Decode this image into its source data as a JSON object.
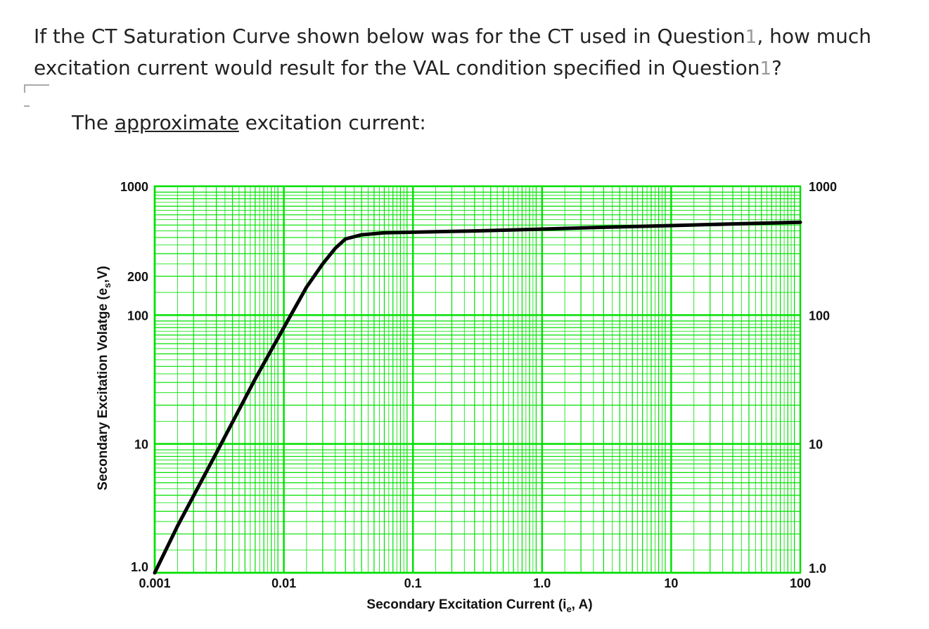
{
  "question": {
    "line1_before": "If the CT Saturation Curve shown below was for the CT used in Question",
    "line1_num": "1",
    "line1_after": ", how much",
    "line2_before": "excitation current would result for the VAL condition specified in Question",
    "line2_num": "1",
    "line2_after": "?"
  },
  "prompt": {
    "before": "The ",
    "underlined": "approximate",
    "after": " excitation current:"
  },
  "colors": {
    "grid": "#00e000",
    "curve": "#000000"
  },
  "chart_data": {
    "type": "line",
    "xscale": "log",
    "yscale": "log",
    "xlim": [
      0.001,
      100
    ],
    "ylim": [
      1,
      1000
    ],
    "grid": true,
    "xlabel": "Secondary Excitation Current (i",
    "xlabel_sub": "e",
    "xlabel_end": ", A)",
    "ylabel": "Secondary Excitation Volatge (e",
    "ylabel_sub": "s",
    "ylabel_end": ",V)",
    "x_ticks": [
      {
        "value": 0.001,
        "label": "0.001"
      },
      {
        "value": 0.01,
        "label": "0.01"
      },
      {
        "value": 0.1,
        "label": "0.1"
      },
      {
        "value": 1,
        "label": "1.0"
      },
      {
        "value": 10,
        "label": "10"
      },
      {
        "value": 100,
        "label": "100"
      }
    ],
    "y_ticks_left": [
      {
        "value": 1,
        "label": "1.0"
      },
      {
        "value": 10,
        "label": "10"
      },
      {
        "value": 100,
        "label": "100"
      },
      {
        "value": 200,
        "label": "200"
      },
      {
        "value": 1000,
        "label": "1000"
      }
    ],
    "y_ticks_right": [
      {
        "value": 1,
        "label": "1.0"
      },
      {
        "value": 10,
        "label": "10"
      },
      {
        "value": 100,
        "label": "100"
      },
      {
        "value": 1000,
        "label": "1000"
      }
    ],
    "series": [
      {
        "x": [
          0.001,
          0.0015,
          0.003,
          0.006,
          0.01,
          0.015,
          0.02,
          0.025,
          0.03,
          0.04,
          0.06,
          0.1,
          0.3,
          1,
          3,
          10,
          30,
          100
        ],
        "y": [
          1,
          2.3,
          8.5,
          32,
          80,
          165,
          250,
          330,
          390,
          420,
          435,
          440,
          450,
          465,
          480,
          495,
          510,
          525
        ]
      }
    ]
  }
}
